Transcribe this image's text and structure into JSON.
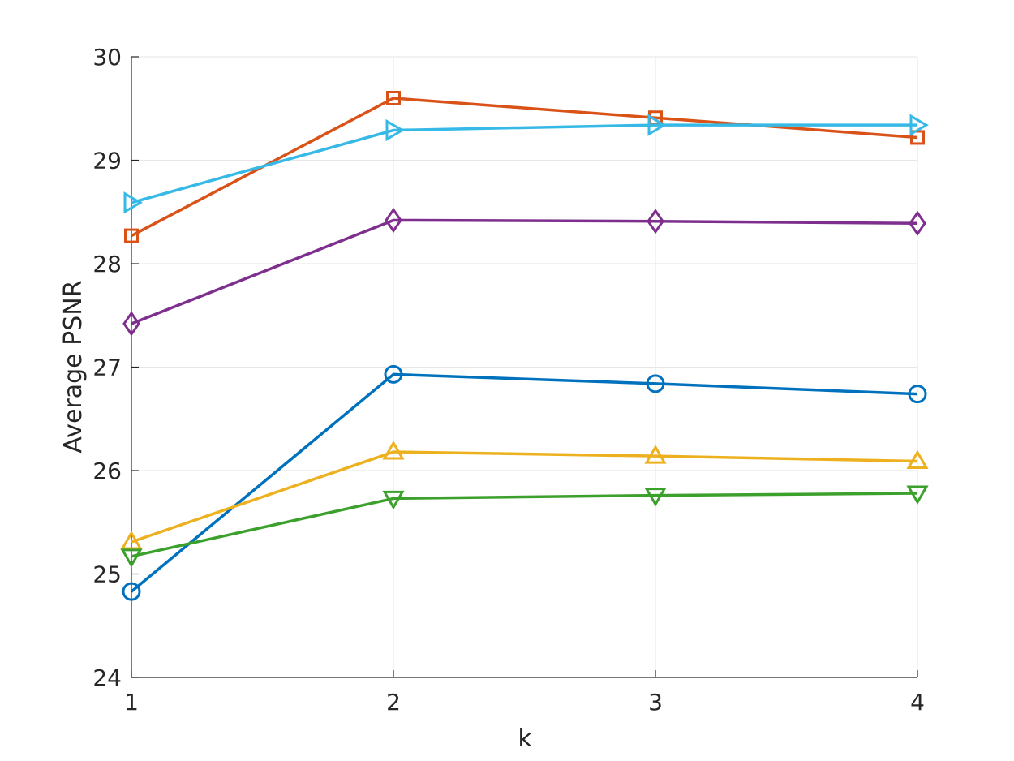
{
  "chart_data": {
    "type": "line",
    "title": "",
    "xlabel": "k",
    "ylabel": "Average PSNR",
    "x": [
      1,
      2,
      3,
      4
    ],
    "xlim": [
      1,
      4
    ],
    "ylim": [
      24,
      30
    ],
    "xticks": [
      1,
      2,
      3,
      4
    ],
    "yticks": [
      24,
      25,
      26,
      27,
      28,
      29,
      30
    ],
    "grid": true,
    "legend": "none",
    "series": [
      {
        "marker": "circle",
        "color": "#0072BD",
        "values": [
          24.83,
          26.93,
          26.84,
          26.74
        ]
      },
      {
        "marker": "square",
        "color": "#D95319",
        "values": [
          28.27,
          29.6,
          29.41,
          29.22
        ]
      },
      {
        "marker": "triangle-up",
        "color": "#EDB120",
        "values": [
          25.31,
          26.18,
          26.14,
          26.09
        ]
      },
      {
        "marker": "diamond",
        "color": "#7E2F8E",
        "values": [
          27.42,
          28.42,
          28.41,
          28.39
        ]
      },
      {
        "marker": "triangle-down",
        "color": "#3CA02C",
        "values": [
          25.17,
          25.73,
          25.76,
          25.78
        ]
      },
      {
        "marker": "triangle-right",
        "color": "#36B9E6",
        "values": [
          28.59,
          29.29,
          29.34,
          29.34
        ]
      }
    ]
  }
}
